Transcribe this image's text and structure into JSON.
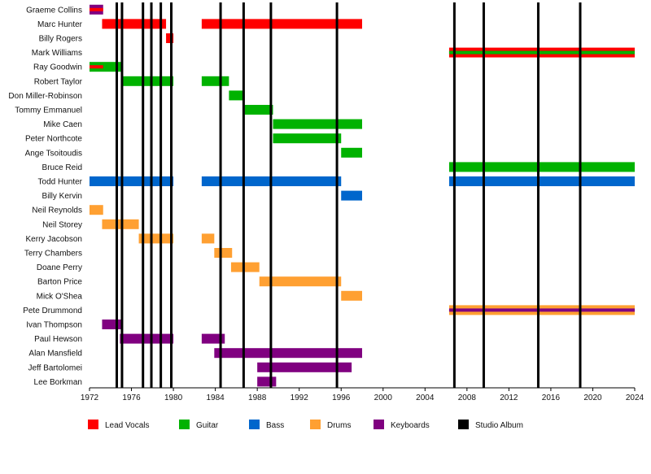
{
  "chart_data": {
    "type": "timeline",
    "xlim": [
      1972,
      2024
    ],
    "x_ticks": [
      "1972",
      "1976",
      "1980",
      "1984",
      "1988",
      "1992",
      "1996",
      "2000",
      "2004",
      "2008",
      "2012",
      "2016",
      "2020",
      "2024"
    ],
    "members": [
      "Graeme Collins",
      "Marc Hunter",
      "Billy Rogers",
      "Mark Williams",
      "Ray Goodwin",
      "Robert Taylor",
      "Don Miller-Robinson",
      "Tommy Emmanuel",
      "Mike Caen",
      "Peter Northcote",
      "Ange Tsoitoudis",
      "Bruce Reid",
      "Todd Hunter",
      "Billy Kervin",
      "Neil Reynolds",
      "Neil Storey",
      "Kerry Jacobson",
      "Terry Chambers",
      "Doane Perry",
      "Barton Price",
      "Mick O'Shea",
      "Pete Drummond",
      "Ivan Thompson",
      "Paul Hewson",
      "Alan Mansfield",
      "Jeff Bartolomei",
      "Lee Borkman"
    ],
    "roles": {
      "Lead Vocals": "#ff0000",
      "Guitar": "#00b200",
      "Bass": "#0066cc",
      "Drums": "#ffa032",
      "Keyboards": "#800080"
    },
    "bars": [
      {
        "member": "Graeme Collins",
        "role": "Keyboards",
        "start": 1972.0,
        "end": 1973.3
      },
      {
        "member": "Graeme Collins",
        "role": "Lead Vocals",
        "start": 1972.0,
        "end": 1973.3,
        "overlay": true
      },
      {
        "member": "Marc Hunter",
        "role": "Lead Vocals",
        "start": 1973.2,
        "end": 1979.3
      },
      {
        "member": "Marc Hunter",
        "role": "Lead Vocals",
        "start": 1982.7,
        "end": 1998.0
      },
      {
        "member": "Billy Rogers",
        "role": "Lead Vocals",
        "start": 1979.3,
        "end": 1980.0
      },
      {
        "member": "Mark Williams",
        "role": "Lead Vocals",
        "start": 2006.3,
        "end": 2024.0
      },
      {
        "member": "Mark Williams",
        "role": "Guitar",
        "start": 2006.3,
        "end": 2024.0,
        "overlay": true
      },
      {
        "member": "Ray Goodwin",
        "role": "Guitar",
        "start": 1972.0,
        "end": 1975.1
      },
      {
        "member": "Ray Goodwin",
        "role": "Lead Vocals",
        "start": 1972.0,
        "end": 1973.3,
        "overlay": true
      },
      {
        "member": "Robert Taylor",
        "role": "Guitar",
        "start": 1975.1,
        "end": 1980.0
      },
      {
        "member": "Robert Taylor",
        "role": "Guitar",
        "start": 1982.7,
        "end": 1985.3
      },
      {
        "member": "Don Miller-Robinson",
        "role": "Guitar",
        "start": 1985.3,
        "end": 1986.8
      },
      {
        "member": "Tommy Emmanuel",
        "role": "Guitar",
        "start": 1986.8,
        "end": 1989.5
      },
      {
        "member": "Mike Caen",
        "role": "Guitar",
        "start": 1989.5,
        "end": 1998.0
      },
      {
        "member": "Peter Northcote",
        "role": "Guitar",
        "start": 1989.5,
        "end": 1996.0
      },
      {
        "member": "Ange Tsoitoudis",
        "role": "Guitar",
        "start": 1996.0,
        "end": 1998.0
      },
      {
        "member": "Bruce Reid",
        "role": "Guitar",
        "start": 2006.3,
        "end": 2024.0
      },
      {
        "member": "Todd Hunter",
        "role": "Bass",
        "start": 1972.0,
        "end": 1980.0
      },
      {
        "member": "Todd Hunter",
        "role": "Bass",
        "start": 1982.7,
        "end": 1996.0
      },
      {
        "member": "Todd Hunter",
        "role": "Bass",
        "start": 2006.3,
        "end": 2024.0
      },
      {
        "member": "Billy Kervin",
        "role": "Bass",
        "start": 1996.0,
        "end": 1998.0
      },
      {
        "member": "Neil Reynolds",
        "role": "Drums",
        "start": 1972.0,
        "end": 1973.3
      },
      {
        "member": "Neil Storey",
        "role": "Drums",
        "start": 1973.2,
        "end": 1976.7
      },
      {
        "member": "Kerry Jacobson",
        "role": "Drums",
        "start": 1976.7,
        "end": 1980.0
      },
      {
        "member": "Kerry Jacobson",
        "role": "Drums",
        "start": 1982.7,
        "end": 1983.9
      },
      {
        "member": "Terry Chambers",
        "role": "Drums",
        "start": 1983.9,
        "end": 1985.6
      },
      {
        "member": "Doane Perry",
        "role": "Drums",
        "start": 1985.5,
        "end": 1988.2
      },
      {
        "member": "Barton Price",
        "role": "Drums",
        "start": 1988.2,
        "end": 1996.0
      },
      {
        "member": "Mick O'Shea",
        "role": "Drums",
        "start": 1996.0,
        "end": 1998.0
      },
      {
        "member": "Pete Drummond",
        "role": "Drums",
        "start": 2006.3,
        "end": 2024.0
      },
      {
        "member": "Pete Drummond",
        "role": "Keyboards",
        "start": 2006.3,
        "end": 2024.0,
        "overlay": true
      },
      {
        "member": "Ivan Thompson",
        "role": "Keyboards",
        "start": 1973.2,
        "end": 1975.0
      },
      {
        "member": "Paul Hewson",
        "role": "Keyboards",
        "start": 1974.9,
        "end": 1980.0
      },
      {
        "member": "Paul Hewson",
        "role": "Keyboards",
        "start": 1982.7,
        "end": 1984.9
      },
      {
        "member": "Alan Mansfield",
        "role": "Keyboards",
        "start": 1983.9,
        "end": 1998.0
      },
      {
        "member": "Jeff Bartolomei",
        "role": "Keyboards",
        "start": 1988.0,
        "end": 1997.0
      },
      {
        "member": "Lee Borkman",
        "role": "Keyboards",
        "start": 1988.0,
        "end": 1989.8
      }
    ],
    "studio_albums": [
      1974.6,
      1975.1,
      1977.1,
      1977.9,
      1978.8,
      1979.8,
      1984.5,
      1986.7,
      1989.3,
      1995.6,
      2006.8,
      2009.6,
      2014.8,
      2018.8
    ],
    "legend": [
      {
        "label": "Lead Vocals",
        "color": "#ff0000"
      },
      {
        "label": "Guitar",
        "color": "#00b200"
      },
      {
        "label": "Bass",
        "color": "#0066cc"
      },
      {
        "label": "Drums",
        "color": "#ffa032"
      },
      {
        "label": "Keyboards",
        "color": "#800080"
      },
      {
        "label": "Studio Album",
        "color": "#000000"
      }
    ]
  }
}
